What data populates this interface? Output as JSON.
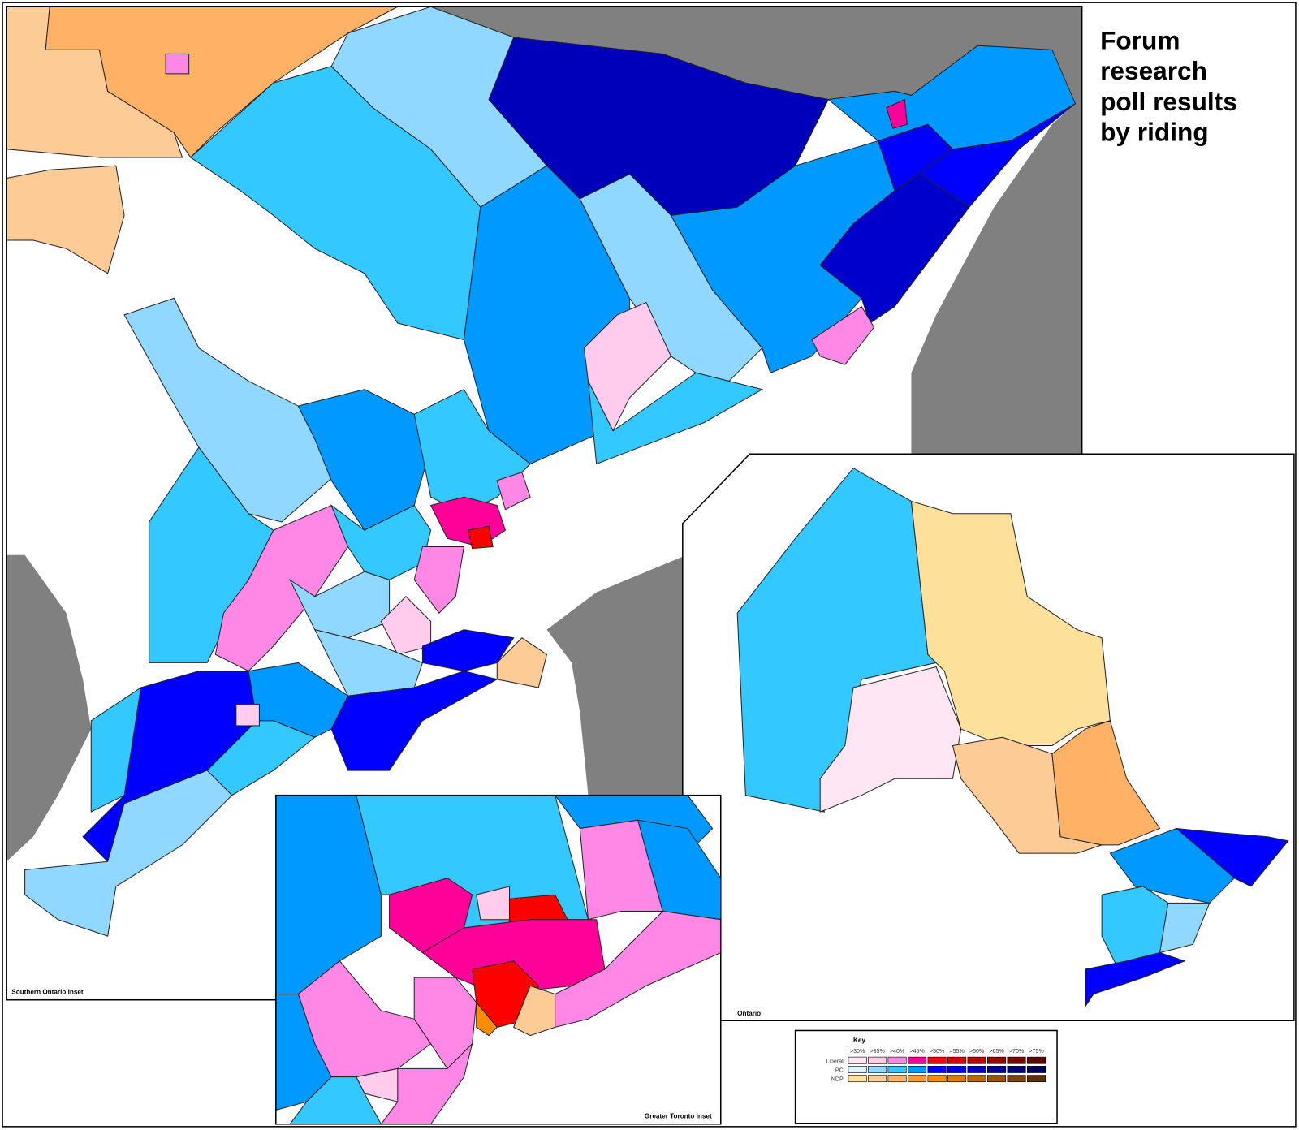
{
  "title_lines": [
    "Forum",
    "research",
    "poll results",
    "by riding"
  ],
  "insets": {
    "southern_ontario": "Southern Ontario Inset",
    "gta": "Greater Toronto Inset",
    "ontario": "Ontario"
  },
  "key": {
    "title": "Key",
    "thresholds": [
      ">30%",
      ">35%",
      ">40%",
      ">45%",
      ">50%",
      ">55%",
      ">60%",
      ">65%",
      ">70%",
      ">75%"
    ],
    "parties": [
      {
        "name": "Liberal",
        "colors": [
          "#ffe6f5",
          "#ffccee",
          "#ff88e6",
          "#ff0099",
          "#ff0000",
          "#e00000",
          "#c00000",
          "#a00000",
          "#800000",
          "#600000"
        ]
      },
      {
        "name": "PC",
        "colors": [
          "#e0f4ff",
          "#90d8ff",
          "#33c8ff",
          "#0099ff",
          "#0000ff",
          "#0000dd",
          "#0000bb",
          "#000099",
          "#000077",
          "#000055"
        ]
      },
      {
        "name": "NDP",
        "colors": [
          "#fde09a",
          "#fccb96",
          "#ffb266",
          "#ff9933",
          "#ff8c00",
          "#e07800",
          "#c06400",
          "#a05000",
          "#804000",
          "#603000"
        ]
      }
    ]
  }
}
